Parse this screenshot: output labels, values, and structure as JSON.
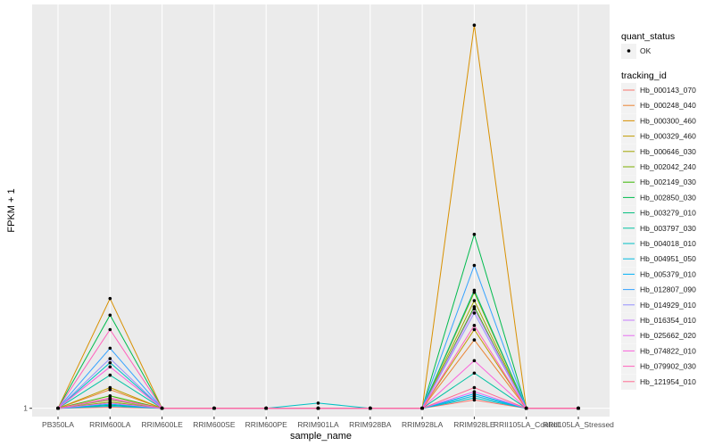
{
  "chart_data": {
    "type": "line",
    "xlabel": "sample_name",
    "ylabel": "FPKM + 1",
    "y_ticks": [
      {
        "value": 1,
        "label": "1"
      }
    ],
    "ylim": [
      0.6,
      20.5
    ],
    "categories": [
      "PB350LA",
      "RRIM600LA",
      "RRIM600LE",
      "RRIM600SE",
      "RRIM600PE",
      "RRIM901LA",
      "RRIM928BA",
      "RRIM928LA",
      "RRIM928LE",
      "RRII105LA_Control",
      "RRII105LA_Stressed"
    ],
    "legend_quant": {
      "title": "quant_status",
      "items": [
        "OK"
      ]
    },
    "legend_tracking": {
      "title": "tracking_id"
    },
    "series": [
      {
        "name": "Hb_000143_070",
        "color": "#F8766D",
        "values": [
          1,
          1.05,
          1,
          1,
          1,
          1,
          1,
          1,
          1.4,
          1,
          1
        ]
      },
      {
        "name": "Hb_000248_040",
        "color": "#EA8331",
        "values": [
          1,
          1.9,
          1,
          1,
          1,
          1,
          1,
          1,
          4.3,
          1,
          1
        ]
      },
      {
        "name": "Hb_000300_460",
        "color": "#D89000",
        "values": [
          1,
          6.3,
          1,
          1,
          1,
          1,
          1,
          1,
          19.5,
          1,
          1
        ]
      },
      {
        "name": "Hb_000329_460",
        "color": "#C09B00",
        "values": [
          1,
          2.0,
          1,
          1,
          1,
          1,
          1,
          1,
          4.8,
          1,
          1
        ]
      },
      {
        "name": "Hb_000646_030",
        "color": "#A3A500",
        "values": [
          1,
          1.4,
          1,
          1,
          1,
          1,
          1,
          1,
          6.2,
          1,
          1
        ]
      },
      {
        "name": "Hb_002042_240",
        "color": "#7CAE00",
        "values": [
          1,
          1.3,
          1,
          1,
          1,
          1,
          1,
          1,
          6.6,
          1,
          1
        ]
      },
      {
        "name": "Hb_002149_030",
        "color": "#39B600",
        "values": [
          1,
          1.6,
          1,
          1,
          1,
          1,
          1,
          1,
          5.9,
          1,
          1
        ]
      },
      {
        "name": "Hb_002850_030",
        "color": "#00BB4E",
        "values": [
          1,
          5.5,
          1,
          1,
          1,
          1,
          1,
          1,
          9.4,
          1,
          1
        ]
      },
      {
        "name": "Hb_003279_010",
        "color": "#00BF7D",
        "values": [
          1,
          1.15,
          1,
          1,
          1,
          1,
          1,
          1,
          6.7,
          1,
          1
        ]
      },
      {
        "name": "Hb_003797_030",
        "color": "#00C1A3",
        "values": [
          1,
          2.6,
          1,
          1,
          1,
          1,
          1,
          1,
          2.7,
          1,
          1
        ]
      },
      {
        "name": "Hb_004018_010",
        "color": "#00BFC4",
        "values": [
          1,
          3.2,
          1,
          1,
          1,
          1.25,
          1,
          1,
          1.5,
          1,
          1
        ]
      },
      {
        "name": "Hb_004951_050",
        "color": "#00BAE0",
        "values": [
          1,
          1.1,
          1,
          1,
          1,
          1,
          1,
          1,
          1.6,
          1,
          1
        ]
      },
      {
        "name": "Hb_005379_010",
        "color": "#00B0F6",
        "values": [
          1,
          1.2,
          1,
          1,
          1,
          1,
          1,
          1,
          1.7,
          1,
          1
        ]
      },
      {
        "name": "Hb_012807_090",
        "color": "#35A2FF",
        "values": [
          1,
          3.9,
          1,
          1,
          1,
          1,
          1,
          1,
          7.9,
          1,
          1
        ]
      },
      {
        "name": "Hb_014929_010",
        "color": "#9590FF",
        "values": [
          1,
          3.4,
          1,
          1,
          1,
          1,
          1,
          1,
          5.6,
          1,
          1
        ]
      },
      {
        "name": "Hb_016354_010",
        "color": "#C77CFF",
        "values": [
          1,
          1.45,
          1,
          1,
          1,
          1,
          1,
          1,
          5.8,
          1,
          1
        ]
      },
      {
        "name": "Hb_025662_020",
        "color": "#E76BF3",
        "values": [
          1,
          1.25,
          1,
          1,
          1,
          1,
          1,
          1,
          1.8,
          1,
          1
        ]
      },
      {
        "name": "Hb_074822_010",
        "color": "#FA62DB",
        "values": [
          1,
          3.0,
          1,
          1,
          1,
          1,
          1,
          1,
          3.3,
          1,
          1
        ]
      },
      {
        "name": "Hb_079902_030",
        "color": "#FF62BC",
        "values": [
          1,
          4.8,
          1,
          1,
          1,
          1,
          1,
          1,
          5.0,
          1,
          1
        ]
      },
      {
        "name": "Hb_121954_010",
        "color": "#FF6C91",
        "values": [
          1,
          1.5,
          1,
          1,
          1,
          1,
          1,
          1,
          2.0,
          1,
          1
        ]
      }
    ]
  }
}
